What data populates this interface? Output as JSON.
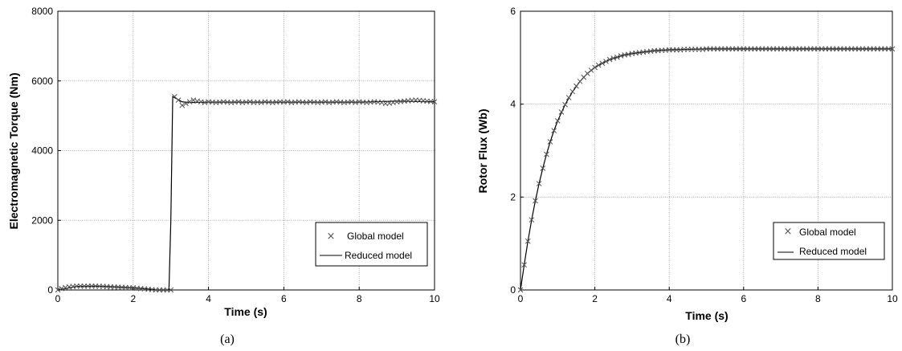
{
  "chart_data": [
    {
      "type": "line",
      "caption": "(a)",
      "xlabel": "Time (s)",
      "ylabel": "Electromagnetic Torque (Nm)",
      "xlim": [
        0,
        10
      ],
      "ylim": [
        0,
        8000
      ],
      "xticks": [
        "0",
        "2",
        "4",
        "6",
        "8",
        "10"
      ],
      "yticks": [
        "0",
        "2000",
        "4000",
        "6000",
        "8000"
      ],
      "grid": true,
      "legend_position": "bottom-right",
      "series": [
        {
          "name": "Global model",
          "style": "markers-x",
          "color": "#555555",
          "x": [
            0,
            0.1,
            0.2,
            0.3,
            0.4,
            0.5,
            0.6,
            0.7,
            0.8,
            0.9,
            1.0,
            1.1,
            1.2,
            1.3,
            1.4,
            1.5,
            1.6,
            1.7,
            1.8,
            1.9,
            2.0,
            2.1,
            2.2,
            2.3,
            2.4,
            2.5,
            2.6,
            2.7,
            2.8,
            2.9,
            3.0,
            3.1,
            3.2,
            3.3,
            3.4,
            3.5,
            3.6,
            3.7,
            3.8,
            3.9,
            4.0,
            4.1,
            4.2,
            4.3,
            4.4,
            4.5,
            4.6,
            4.7,
            4.8,
            4.9,
            5.0,
            5.1,
            5.2,
            5.3,
            5.4,
            5.5,
            5.6,
            5.7,
            5.8,
            5.9,
            6.0,
            6.1,
            6.2,
            6.3,
            6.4,
            6.5,
            6.6,
            6.7,
            6.8,
            6.9,
            7.0,
            7.1,
            7.2,
            7.3,
            7.4,
            7.5,
            7.6,
            7.7,
            7.8,
            7.9,
            8.0,
            8.1,
            8.2,
            8.3,
            8.4,
            8.5,
            8.6,
            8.7,
            8.8,
            8.9,
            9.0,
            9.1,
            9.2,
            9.3,
            9.4,
            9.5,
            9.6,
            9.7,
            9.8,
            9.9,
            10.0
          ],
          "y": [
            0,
            40,
            70,
            90,
            100,
            110,
            110,
            110,
            110,
            110,
            110,
            105,
            100,
            95,
            90,
            85,
            80,
            75,
            70,
            65,
            60,
            50,
            40,
            30,
            20,
            10,
            0,
            0,
            0,
            0,
            0,
            5550,
            5450,
            5300,
            5350,
            5400,
            5450,
            5420,
            5400,
            5380,
            5400,
            5390,
            5380,
            5390,
            5400,
            5390,
            5380,
            5390,
            5400,
            5380,
            5390,
            5400,
            5380,
            5390,
            5380,
            5400,
            5390,
            5380,
            5390,
            5400,
            5390,
            5400,
            5380,
            5390,
            5400,
            5390,
            5380,
            5400,
            5390,
            5380,
            5390,
            5400,
            5380,
            5390,
            5400,
            5390,
            5380,
            5390,
            5400,
            5380,
            5400,
            5390,
            5380,
            5390,
            5400,
            5390,
            5380,
            5350,
            5360,
            5380,
            5400,
            5410,
            5420,
            5430,
            5440,
            5450,
            5440,
            5430,
            5420,
            5410,
            5400
          ]
        },
        {
          "name": "Reduced model",
          "style": "line",
          "color": "#000000",
          "x": [
            0,
            0.5,
            1.0,
            1.5,
            2.0,
            2.5,
            2.6,
            2.95,
            3.0,
            3.05,
            3.1,
            3.3,
            3.5,
            4.0,
            5.0,
            6.0,
            7.0,
            8.0,
            9.0,
            10.0
          ],
          "y": [
            0,
            100,
            110,
            90,
            60,
            20,
            0,
            0,
            2000,
            5550,
            5520,
            5400,
            5380,
            5390,
            5390,
            5390,
            5390,
            5390,
            5420,
            5400
          ]
        }
      ]
    },
    {
      "type": "line",
      "caption": "(b)",
      "xlabel": "Time (s)",
      "ylabel": "Rotor Flux (Wb)",
      "xlim": [
        0,
        10
      ],
      "ylim": [
        0,
        6
      ],
      "xticks": [
        "0",
        "2",
        "4",
        "6",
        "8",
        "10"
      ],
      "yticks": [
        "0",
        "2",
        "4",
        "6"
      ],
      "grid": true,
      "legend_position": "bottom-right",
      "series": [
        {
          "name": "Global model",
          "style": "markers-x",
          "color": "#555555",
          "x": [
            0,
            0.1,
            0.2,
            0.3,
            0.4,
            0.5,
            0.6,
            0.7,
            0.8,
            0.9,
            1.0,
            1.1,
            1.2,
            1.3,
            1.4,
            1.5,
            1.6,
            1.7,
            1.8,
            1.9,
            2.0,
            2.1,
            2.2,
            2.3,
            2.4,
            2.5,
            2.6,
            2.7,
            2.8,
            2.9,
            3.0,
            3.1,
            3.2,
            3.3,
            3.4,
            3.5,
            3.6,
            3.7,
            3.8,
            3.9,
            4.0,
            4.1,
            4.2,
            4.3,
            4.4,
            4.5,
            4.6,
            4.7,
            4.8,
            4.9,
            5.0,
            5.1,
            5.2,
            5.3,
            5.4,
            5.5,
            5.6,
            5.7,
            5.8,
            5.9,
            6.0,
            6.1,
            6.2,
            6.3,
            6.4,
            6.5,
            6.6,
            6.7,
            6.8,
            6.9,
            7.0,
            7.1,
            7.2,
            7.3,
            7.4,
            7.5,
            7.6,
            7.7,
            7.8,
            7.9,
            8.0,
            8.1,
            8.2,
            8.3,
            8.4,
            8.5,
            8.6,
            8.7,
            8.8,
            8.9,
            9.0,
            9.1,
            9.2,
            9.3,
            9.4,
            9.5,
            9.6,
            9.7,
            9.8,
            9.9,
            10.0
          ],
          "y": [
            0,
            0.54,
            1.05,
            1.51,
            1.92,
            2.29,
            2.62,
            2.92,
            3.19,
            3.43,
            3.64,
            3.83,
            3.99,
            4.14,
            4.27,
            4.39,
            4.49,
            4.58,
            4.66,
            4.73,
            4.79,
            4.84,
            4.88,
            4.92,
            4.96,
            4.99,
            5.01,
            5.04,
            5.06,
            5.07,
            5.09,
            5.1,
            5.11,
            5.12,
            5.13,
            5.14,
            5.15,
            5.15,
            5.16,
            5.16,
            5.17,
            5.17,
            5.17,
            5.17,
            5.18,
            5.18,
            5.18,
            5.18,
            5.18,
            5.18,
            5.19,
            5.19,
            5.19,
            5.19,
            5.19,
            5.19,
            5.19,
            5.19,
            5.19,
            5.19,
            5.19,
            5.19,
            5.19,
            5.19,
            5.19,
            5.19,
            5.19,
            5.19,
            5.19,
            5.19,
            5.19,
            5.19,
            5.19,
            5.19,
            5.19,
            5.19,
            5.19,
            5.19,
            5.19,
            5.19,
            5.19,
            5.19,
            5.19,
            5.19,
            5.19,
            5.19,
            5.19,
            5.19,
            5.19,
            5.19,
            5.19,
            5.19,
            5.19,
            5.19,
            5.19,
            5.19,
            5.19,
            5.19,
            5.19,
            5.19,
            5.19
          ]
        },
        {
          "name": "Reduced model",
          "style": "line",
          "color": "#000000",
          "x": [
            0,
            0.1,
            0.2,
            0.3,
            0.4,
            0.5,
            0.6,
            0.7,
            0.8,
            0.9,
            1.0,
            1.2,
            1.4,
            1.6,
            1.8,
            2.0,
            2.2,
            2.4,
            2.6,
            2.8,
            3.0,
            3.3,
            3.6,
            4.0,
            4.5,
            5.0,
            6.0,
            7.0,
            8.0,
            9.0,
            10.0
          ],
          "y": [
            0,
            0.54,
            1.05,
            1.51,
            1.92,
            2.29,
            2.62,
            2.92,
            3.19,
            3.43,
            3.64,
            3.99,
            4.27,
            4.49,
            4.66,
            4.79,
            4.88,
            4.96,
            5.01,
            5.06,
            5.09,
            5.12,
            5.15,
            5.17,
            5.18,
            5.19,
            5.19,
            5.19,
            5.19,
            5.19,
            5.19
          ]
        }
      ]
    }
  ]
}
